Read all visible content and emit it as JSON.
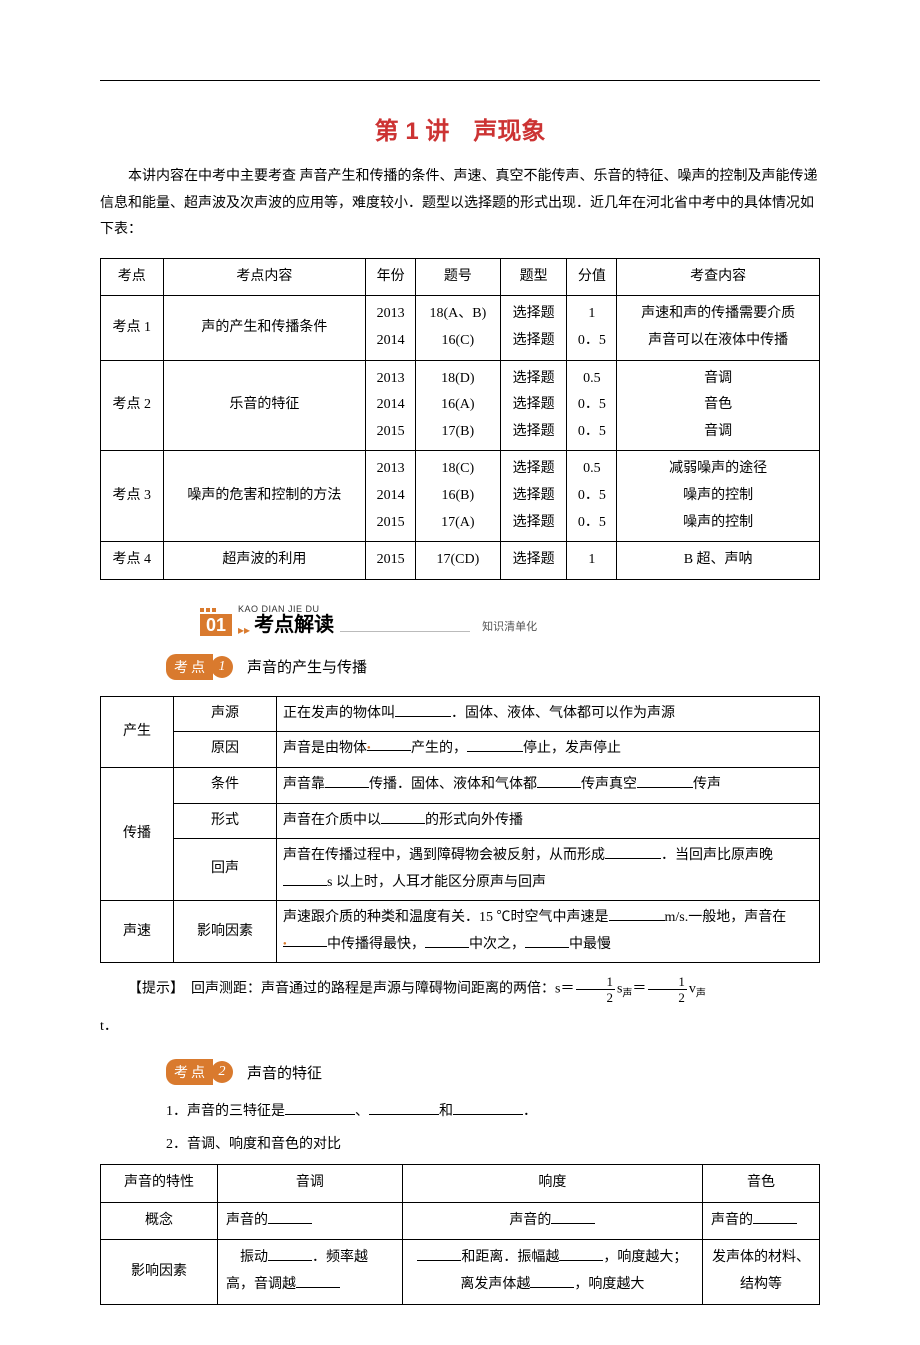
{
  "title": "第 1 讲　声现象",
  "title_color": "#cc3333",
  "intro": "本讲内容在中考中主要考查 声音产生和传播的条件、声速、真空不能传声、乐音的特征、噪声的控制及声能传递信息和能量、超声波及次声波的应用等，难度较小．题型以选择题的形式出现．近几年在河北省中考中的具体情况如下表：",
  "exam_table": {
    "headers": [
      "考点",
      "考点内容",
      "年份",
      "题号",
      "题型",
      "分值",
      "考查内容"
    ],
    "rows": [
      {
        "kd": "考点 1",
        "content": "声的产生和传播条件",
        "years": [
          "2013",
          "2014"
        ],
        "nums": [
          "18(A、B)",
          "16(C)"
        ],
        "types": [
          "选择题",
          "选择题"
        ],
        "scores": [
          "1",
          "0．5"
        ],
        "desc": [
          "声速和声的传播需要介质",
          "声音可以在液体中传播"
        ]
      },
      {
        "kd": "考点 2",
        "content": "乐音的特征",
        "years": [
          "2013",
          "2014",
          "2015"
        ],
        "nums": [
          "18(D)",
          "16(A)",
          "17(B)"
        ],
        "types": [
          "选择题",
          "选择题",
          "选择题"
        ],
        "scores": [
          "0.5",
          "0．5",
          "0．5"
        ],
        "desc": [
          "音调",
          "音色",
          "音调"
        ]
      },
      {
        "kd": "考点 3",
        "content": "噪声的危害和控制的方法",
        "years": [
          "2013",
          "2014",
          "2015"
        ],
        "nums": [
          "18(C)",
          "16(B)",
          "17(A)"
        ],
        "types": [
          "选择题",
          "选择题",
          "选择题"
        ],
        "scores": [
          "0.5",
          "0．5",
          "0．5"
        ],
        "desc": [
          "减弱噪声的途径",
          "噪声的控制",
          "噪声的控制"
        ]
      },
      {
        "kd": "考点 4",
        "content": "超声波的利用",
        "years": [
          "2015"
        ],
        "nums": [
          "17(CD)"
        ],
        "types": [
          "选择题"
        ],
        "scores": [
          "1"
        ],
        "desc": [
          "B 超、声呐"
        ]
      }
    ]
  },
  "section_badge": {
    "num": "01",
    "pinyin": "KAO DIAN JIE DU",
    "title": "考点解读",
    "sub": "知识清单化",
    "accent": "#d97a2e"
  },
  "kd1": {
    "label": "考点",
    "num": "1",
    "title": "声音的产生与传播",
    "rows": {
      "r1": {
        "g": "产生",
        "k": "声源",
        "v_a": "正在发声的物体叫",
        "v_b": "．固体、液体、气体都可以作为声源"
      },
      "r2": {
        "k": "原因",
        "v_a": "声音是由物体",
        "v_b": "产生的，",
        "v_c": "停止，发声停止"
      },
      "r3": {
        "g": "传播",
        "k": "条件",
        "v_a": "声音靠",
        "v_b": "传播．固体、液体和气体都",
        "v_c": "传声真空",
        "v_d": "传声"
      },
      "r4": {
        "k": "形式",
        "v_a": "声音在介质中以",
        "v_b": "的形式向外传播"
      },
      "r5": {
        "k": "回声",
        "v_a": "声音在传播过程中，遇到障碍物会被反射，从而形成",
        "v_b": "．当回声比原声晚",
        "v_c": "s 以上时，人耳才能区分原声与回声"
      },
      "r6": {
        "g": "声速",
        "k": "影响因素",
        "v_a": "声速跟介质的种类和温度有关．15 ℃时空气中声速是",
        "v_b": "m/s.一般地，声音在",
        "v_c": "中传播得最快，",
        "v_d": "中次之，",
        "v_e": "中最慢"
      }
    },
    "tip_a": "【提示】　回声测距：声音通过的路程是声源与障碍物间距离的两倍：s＝",
    "tip_b": "s",
    "tip_sub": "声",
    "tip_c": "＝",
    "tip_d": "v",
    "tip_e": "t．"
  },
  "kd2": {
    "label": "考点",
    "num": "2",
    "title": "声音的特征",
    "p1_a": "1．声音的三特征是",
    "p1_b": "、",
    "p1_c": "和",
    "p1_d": "．",
    "p2": "2．音调、响度和音色的对比",
    "compare": {
      "h0": "声音的特性",
      "h1": "音调",
      "h2": "响度",
      "h3": "音色",
      "r1k": "概念",
      "r1a": "声音的",
      "r1b": "声音的",
      "r1c": "声音的",
      "r2k": "影响因素",
      "r2a_a": "振动",
      "r2a_b": "．频率越高，音调越",
      "r2b_a": "和距离．振幅越",
      "r2b_b": "，响度越大；离发声体越",
      "r2b_c": "，响度越大",
      "r2c": "发声体的材料、结构等"
    }
  }
}
